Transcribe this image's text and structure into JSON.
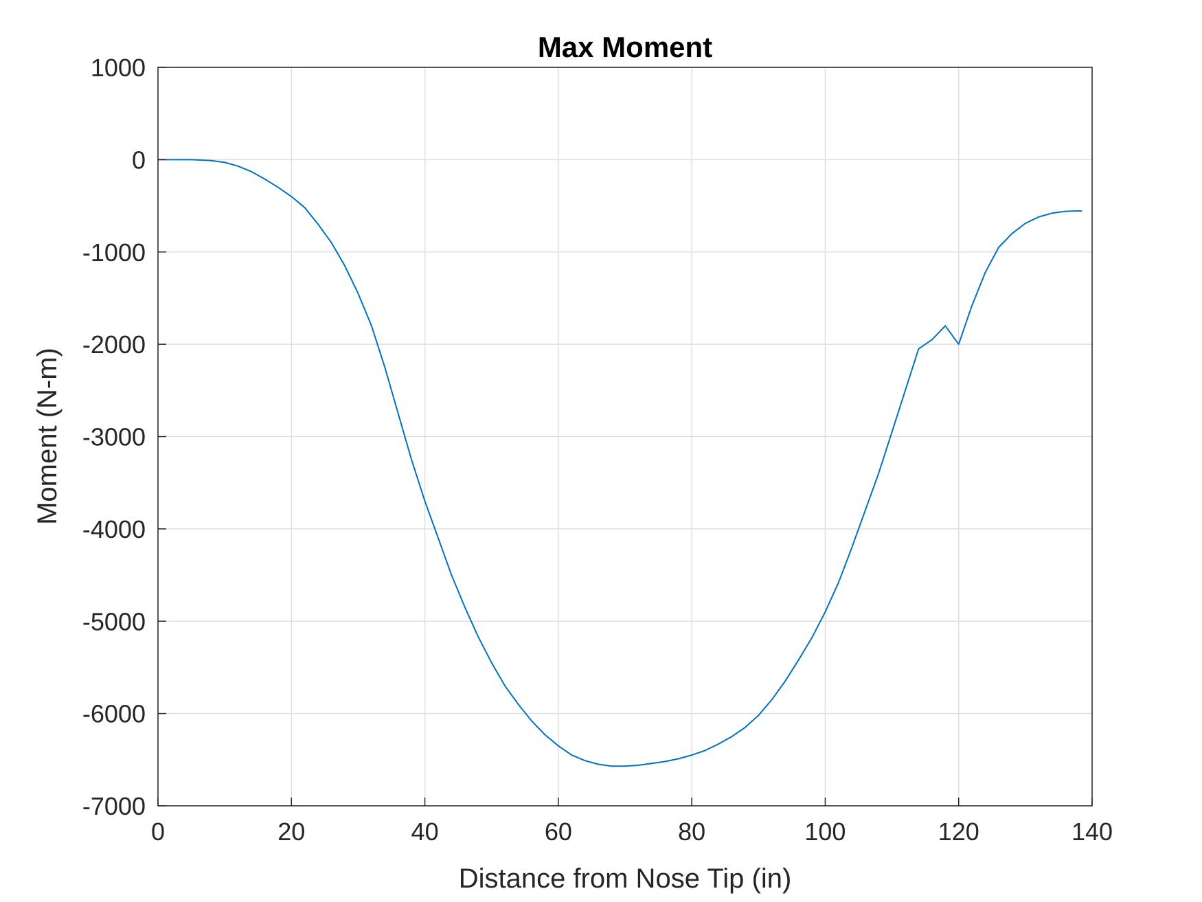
{
  "chart_data": {
    "type": "line",
    "title": "Max Moment",
    "xlabel": "Distance from Nose Tip (in)",
    "ylabel": "Moment (N-m)",
    "xlim": [
      0,
      140
    ],
    "ylim": [
      -7000,
      1000
    ],
    "xticks": [
      0,
      20,
      40,
      60,
      80,
      100,
      120,
      140
    ],
    "yticks": [
      1000,
      0,
      -1000,
      -2000,
      -3000,
      -4000,
      -5000,
      -6000,
      -7000
    ],
    "xtick_labels": [
      "0",
      "20",
      "40",
      "60",
      "80",
      "100",
      "120",
      "140"
    ],
    "ytick_labels": [
      "1000",
      "0",
      "-1000",
      "-2000",
      "-3000",
      "-4000",
      "-5000",
      "-6000",
      "-7000"
    ],
    "grid": true,
    "line_color": "#0072BD",
    "series": [
      {
        "x": [
          0,
          5,
          8,
          10,
          12,
          14,
          16,
          18,
          20,
          22,
          24,
          26,
          28,
          30,
          32,
          34,
          36,
          38,
          40,
          42,
          44,
          46,
          48,
          50,
          52,
          54,
          56,
          58,
          60,
          62,
          64,
          66,
          68,
          70,
          72,
          74,
          76,
          78,
          80,
          82,
          84,
          86,
          88,
          90,
          92,
          94,
          96,
          98,
          100,
          102,
          104,
          106,
          108,
          110,
          112,
          114,
          116,
          118,
          120,
          122,
          124,
          126,
          128,
          130,
          132,
          134,
          136,
          138,
          138.5
        ],
        "y": [
          0,
          0,
          -10,
          -30,
          -70,
          -130,
          -210,
          -300,
          -400,
          -520,
          -700,
          -900,
          -1150,
          -1450,
          -1800,
          -2250,
          -2750,
          -3250,
          -3700,
          -4100,
          -4500,
          -4850,
          -5170,
          -5450,
          -5700,
          -5900,
          -6080,
          -6230,
          -6350,
          -6450,
          -6510,
          -6550,
          -6570,
          -6570,
          -6560,
          -6540,
          -6520,
          -6490,
          -6450,
          -6400,
          -6330,
          -6250,
          -6150,
          -6020,
          -5850,
          -5650,
          -5420,
          -5180,
          -4900,
          -4580,
          -4200,
          -3800,
          -3400,
          -2950,
          -2500,
          -2050,
          -1950,
          -1800,
          -2000,
          -1580,
          -1220,
          -950,
          -800,
          -690,
          -620,
          -580,
          -560,
          -555,
          -558
        ]
      }
    ]
  }
}
